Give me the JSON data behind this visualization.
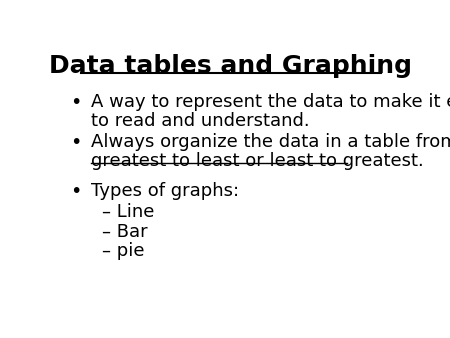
{
  "title": "Data tables and Graphing",
  "background_color": "#ffffff",
  "text_color": "#000000",
  "title_fontsize": 18,
  "body_fontsize": 13,
  "bullet1_line1": "A way to represent the data to make it easier",
  "bullet1_line2": "to read and understand.",
  "bullet2_line1": "Always organize the data in a table from",
  "bullet2_underline": "greatest to least or least to greatest",
  "bullet2_period": ".",
  "bullet3": "Types of graphs:",
  "sub1": "– Line",
  "sub2": "– Bar",
  "sub3": "– pie"
}
